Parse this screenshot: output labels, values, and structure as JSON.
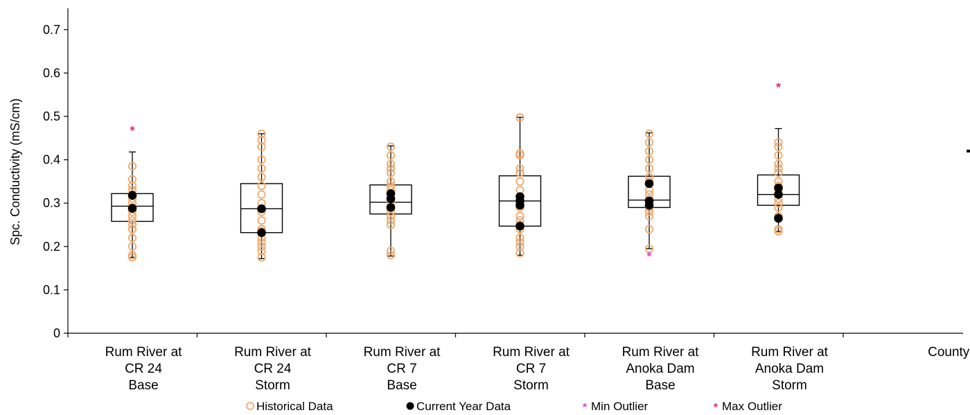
{
  "chart_data": {
    "type": "boxplot",
    "title": "",
    "ylabel": "Spc. Conductivity (mS/cm)",
    "xlabel": "",
    "ylim": [
      0,
      0.75
    ],
    "yticks": [
      "0",
      "0.1",
      "0.2",
      "0.3",
      "0.4",
      "0.5",
      "0.6",
      "0.7"
    ],
    "grid": false,
    "legend_position": "bottom",
    "colors": {
      "historical": "#f0a868",
      "current": "#000000",
      "min_outlier": "#e040e0",
      "max_outlier": "#e03060",
      "box": "#000000"
    },
    "legend": [
      {
        "key": "historical",
        "label": "Historical Data"
      },
      {
        "key": "current",
        "label": "Current Year Data"
      },
      {
        "key": "min_outlier",
        "label": "Min Outlier"
      },
      {
        "key": "max_outlier",
        "label": "Max Outlier"
      }
    ],
    "categories": [
      {
        "label": [
          "Rum River at",
          "CR 24",
          "Base"
        ],
        "box": {
          "whisker_low": 0.175,
          "q1": 0.258,
          "median": 0.293,
          "q3": 0.322,
          "whisker_high": 0.418
        },
        "historical": [
          0.175,
          0.18,
          0.2,
          0.22,
          0.24,
          0.25,
          0.26,
          0.27,
          0.28,
          0.29,
          0.3,
          0.31,
          0.32,
          0.33,
          0.34,
          0.355,
          0.385
        ],
        "current": [
          0.288,
          0.318
        ],
        "max_outliers": [
          0.468
        ],
        "min_outliers": []
      },
      {
        "label": [
          "Rum River at",
          "CR 24",
          "Storm"
        ],
        "box": {
          "whisker_low": 0.172,
          "q1": 0.232,
          "median": 0.287,
          "q3": 0.345,
          "whisker_high": 0.46
        },
        "historical": [
          0.175,
          0.19,
          0.2,
          0.21,
          0.22,
          0.235,
          0.24,
          0.26,
          0.28,
          0.3,
          0.32,
          0.34,
          0.36,
          0.38,
          0.4,
          0.43,
          0.445,
          0.46
        ],
        "current": [
          0.232,
          0.287
        ],
        "max_outliers": [],
        "min_outliers": []
      },
      {
        "label": [
          "Rum River at",
          "CR 7",
          "Base"
        ],
        "box": {
          "whisker_low": 0.178,
          "q1": 0.275,
          "median": 0.302,
          "q3": 0.342,
          "whisker_high": 0.432
        },
        "historical": [
          0.18,
          0.19,
          0.25,
          0.26,
          0.27,
          0.28,
          0.3,
          0.31,
          0.32,
          0.33,
          0.34,
          0.35,
          0.37,
          0.38,
          0.39,
          0.41,
          0.43
        ],
        "current": [
          0.29,
          0.31,
          0.322
        ],
        "max_outliers": [],
        "min_outliers": []
      },
      {
        "label": [
          "Rum River at",
          "CR 7",
          "Storm"
        ],
        "box": {
          "whisker_low": 0.18,
          "q1": 0.247,
          "median": 0.305,
          "q3": 0.363,
          "whisker_high": 0.498
        },
        "historical": [
          0.185,
          0.2,
          0.21,
          0.22,
          0.24,
          0.25,
          0.26,
          0.27,
          0.29,
          0.3,
          0.31,
          0.33,
          0.35,
          0.37,
          0.38,
          0.41,
          0.415,
          0.498
        ],
        "current": [
          0.247,
          0.295,
          0.305,
          0.315
        ],
        "max_outliers": [],
        "min_outliers": []
      },
      {
        "label": [
          "Rum River at",
          "Anoka Dam",
          "Base"
        ],
        "box": {
          "whisker_low": 0.195,
          "q1": 0.29,
          "median": 0.307,
          "q3": 0.362,
          "whisker_high": 0.462
        },
        "historical": [
          0.195,
          0.24,
          0.27,
          0.28,
          0.29,
          0.3,
          0.31,
          0.32,
          0.33,
          0.35,
          0.36,
          0.38,
          0.4,
          0.42,
          0.44,
          0.46
        ],
        "current": [
          0.295,
          0.305,
          0.345
        ],
        "max_outliers": [],
        "min_outliers": [
          0.178
        ]
      },
      {
        "label": [
          "Rum River at",
          "Anoka Dam",
          "Storm"
        ],
        "box": {
          "whisker_low": 0.235,
          "q1": 0.295,
          "median": 0.32,
          "q3": 0.365,
          "whisker_high": 0.472
        },
        "historical": [
          0.235,
          0.24,
          0.27,
          0.29,
          0.3,
          0.31,
          0.33,
          0.34,
          0.35,
          0.37,
          0.38,
          0.39,
          0.41,
          0.43,
          0.44
        ],
        "current": [
          0.265,
          0.32,
          0.335
        ],
        "max_outliers": [
          0.568
        ],
        "min_outliers": []
      },
      {
        "label": [
          "County Median"
        ],
        "median_marker": 0.42
      }
    ]
  }
}
